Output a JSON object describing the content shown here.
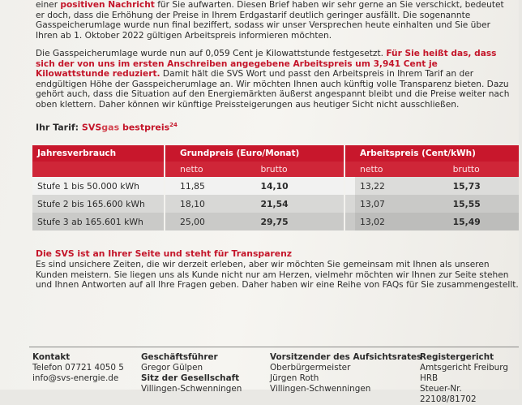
{
  "intro": {
    "segments": [
      "einer ",
      "positiven Nachricht",
      " für Sie aufwarten. Diesen Brief haben wir sehr gerne an Sie verschickt, bedeutet er doch, dass die Erhöhung der Preise in Ihrem Erdgastarif deutlich geringer ausfällt. Die sogenannte Gasspeicherumlage wurde nun final beziffert, sodass wir unser Versprechen heute einhalten und Sie über Ihren ab 1. Oktober 2022 gültigen Arbeitspreis informieren möchten."
    ]
  },
  "update": {
    "segments": [
      "Die Gasspeicherumlage wurde nun auf 0,059 Cent je Kilowattstunde festgesetzt. ",
      "Für Sie heißt das, dass sich der von uns im ersten Anschreiben angegebene Arbeitspreis um 3,941 Cent je Kilowattstunde reduziert.",
      " Damit hält die SVS Wort und passt den Arbeitspreis in Ihrem Tarif an der endgültigen Höhe der Gasspeicherumlage an. Wir möchten Ihnen auch künftig volle Transparenz bieten. Dazu gehört auch, dass die Situation auf den Energiemärkten äußerst angespannt bleibt und die Preise weiter nach oben klettern. Daher können wir künftige Preissteigerungen aus heutiger Sicht nicht ausschließen."
    ]
  },
  "tariff": {
    "segments": [
      "Ihr Tarif: ",
      "SVS",
      "gas",
      " bestpreis",
      "24"
    ]
  },
  "table": {
    "header": [
      "Jahresverbrauch",
      "Grundpreis (Euro/Monat)",
      "Arbeitspreis (Cent/kWh)"
    ],
    "subheader": [
      "netto",
      "brutto",
      "netto",
      "brutto"
    ],
    "rows": [
      [
        "Stufe 1 bis 50.000 kWh",
        "11,85",
        "14,10",
        "13,22",
        "15,73"
      ],
      [
        "Stufe 2 bis 165.600 kWh",
        "18,10",
        "21,54",
        "13,07",
        "15,55"
      ],
      [
        "Stufe 3 ab 165.601 kWh",
        "25,00",
        "29,75",
        "13,02",
        "15,49"
      ]
    ]
  },
  "transparency": {
    "heading": "Die SVS ist an Ihrer Seite und steht für Transparenz",
    "text": "Es sind unsichere Zeiten, die wir derzeit erleben, aber wir möchten Sie gemeinsam mit Ihnen als unseren Kunden meistern. Sie liegen uns als Kunde nicht nur am Herzen, vielmehr möchten wir Ihnen zur Seite stehen und Ihnen Antworten auf all Ihre Fragen geben. Daher haben wir eine Reihe von FAQs für Sie zusammengestellt."
  },
  "footer": [
    {
      "heading": "Kontakt",
      "lines": [
        "Telefon 07721 4050 5",
        "info@svs-energie.de"
      ]
    },
    {
      "heading": "Geschäftsführer",
      "lines": [
        "Gregor Gülpen",
        "Sitz der Gesellschaft",
        "Villingen-Schwenningen"
      ]
    },
    {
      "heading": "Vorsitzender des Aufsichtsrates",
      "lines": [
        "Oberbürgermeister",
        "Jürgen Roth",
        "Villingen-Schwenningen"
      ]
    },
    {
      "heading": "Registergericht",
      "lines": [
        "Amtsgericht Freiburg HRB",
        "Steuer-Nr. 22108/81702"
      ]
    }
  ]
}
